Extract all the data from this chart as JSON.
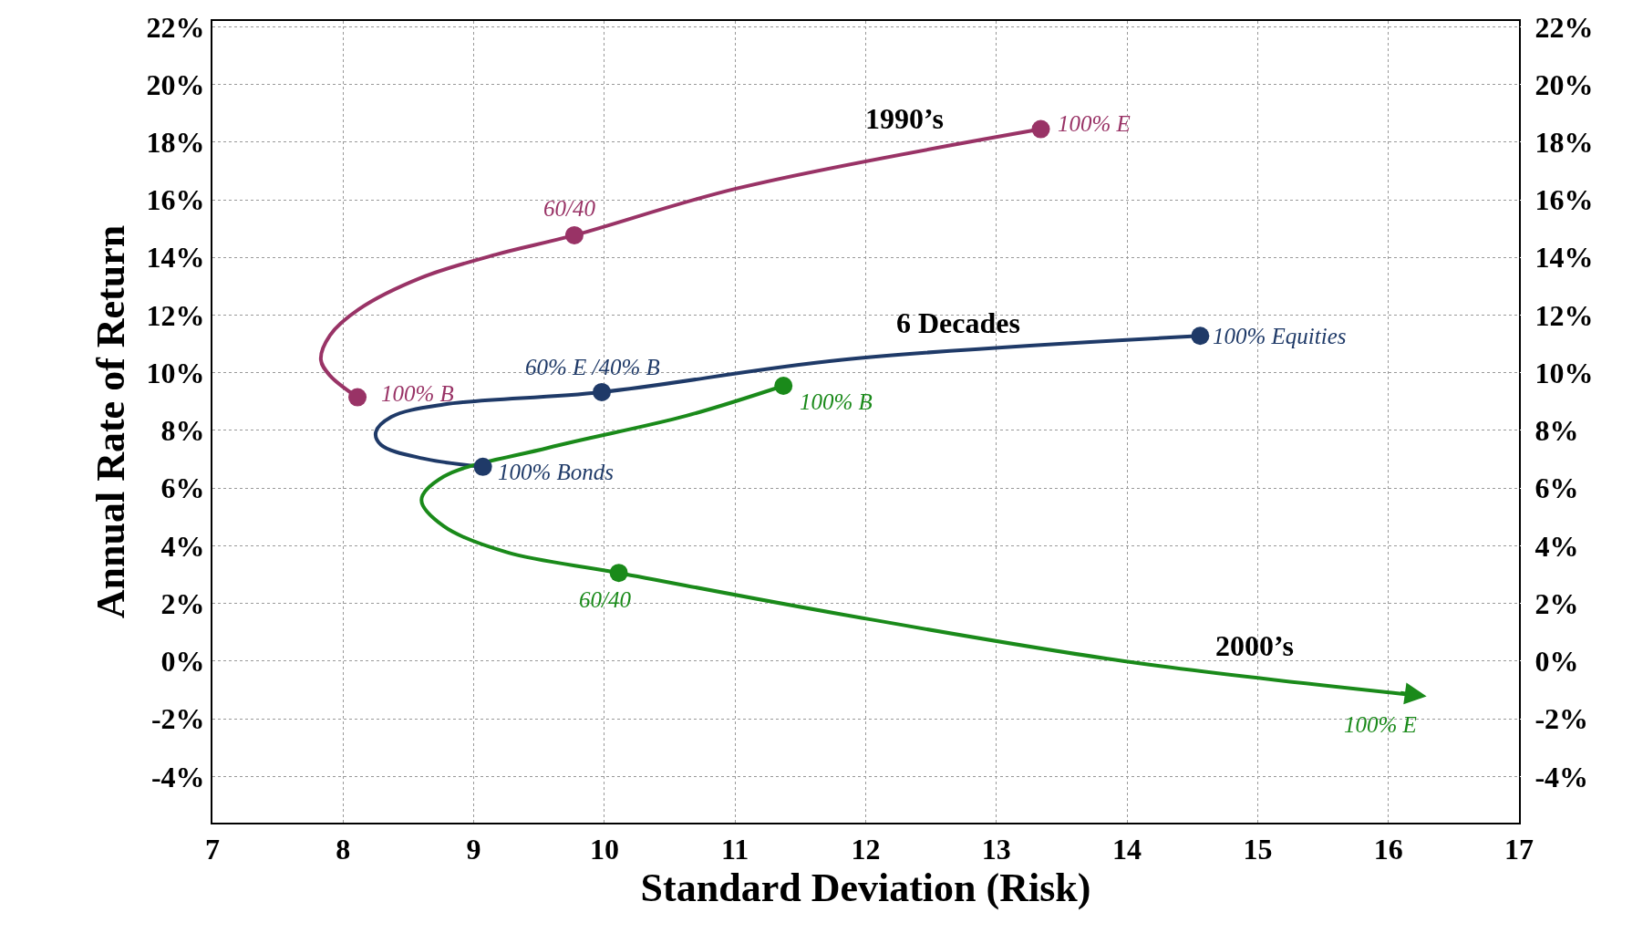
{
  "chart_data": {
    "type": "line",
    "xlabel": "Standard Deviation (Risk)",
    "ylabel": "Annual Rate of Return",
    "xlim": [
      7,
      17
    ],
    "xticks": [
      7,
      8,
      9,
      10,
      11,
      12,
      13,
      14,
      15,
      16,
      17
    ],
    "ylim": [
      -5.6,
      22.2
    ],
    "yticks": [
      {
        "value": -4,
        "label": "-4%"
      },
      {
        "value": -2,
        "label": "-2%"
      },
      {
        "value": 0,
        "label": "0%"
      },
      {
        "value": 2,
        "label": "2%"
      },
      {
        "value": 4,
        "label": "4%"
      },
      {
        "value": 6,
        "label": "6%"
      },
      {
        "value": 8,
        "label": "8%"
      },
      {
        "value": 10,
        "label": "10%"
      },
      {
        "value": 12,
        "label": "12%"
      },
      {
        "value": 14,
        "label": "14%"
      },
      {
        "value": 16,
        "label": "16%"
      },
      {
        "value": 18,
        "label": "18%"
      },
      {
        "value": 20,
        "label": "20%"
      },
      {
        "value": 22,
        "label": "22%"
      }
    ],
    "y2lim": [
      -5.6,
      22.2
    ],
    "y2ticks": [
      {
        "value": -4,
        "label": "-4%"
      },
      {
        "value": -2,
        "label": "-2%"
      },
      {
        "value": 0,
        "label": "0%"
      },
      {
        "value": 2,
        "label": "2%"
      },
      {
        "value": 4,
        "label": "4%"
      },
      {
        "value": 6,
        "label": "6%"
      },
      {
        "value": 8,
        "label": "8%"
      },
      {
        "value": 10,
        "label": "10%"
      },
      {
        "value": 12,
        "label": "12%"
      },
      {
        "value": 14,
        "label": "14%"
      },
      {
        "value": 16,
        "label": "16%"
      },
      {
        "value": 18,
        "label": "18%"
      },
      {
        "value": 20,
        "label": "20%"
      },
      {
        "value": 22,
        "label": "22%"
      }
    ],
    "grid": true,
    "line_style": "solid",
    "series": [
      {
        "name": "1990’s",
        "color": "#993366",
        "marker": "none",
        "x": [
          8.11,
          7.9,
          7.83,
          7.9,
          8.12,
          8.6,
          9.17,
          9.77,
          11.02,
          13.34
        ],
        "values": [
          9.15,
          9.9,
          10.45,
          11.3,
          12.2,
          13.3,
          14.1,
          14.77,
          16.4,
          18.45
        ]
      },
      {
        "name": "6 Decades",
        "color": "#1f3a68",
        "marker": "none",
        "x": [
          9.07,
          8.61,
          8.29,
          8.25,
          8.37,
          8.77,
          9.98,
          11.82,
          14.56
        ],
        "values": [
          6.74,
          7.03,
          7.5,
          7.93,
          8.47,
          8.9,
          9.33,
          10.45,
          11.28
        ]
      },
      {
        "name": "2000’s",
        "color": "#1a8a1a",
        "marker": "none",
        "x": [
          11.37,
          10.62,
          9.57,
          8.77,
          8.6,
          8.77,
          9.25,
          10.11,
          11.82,
          13.98,
          16.23
        ],
        "values": [
          9.55,
          8.5,
          7.4,
          6.4,
          5.59,
          4.68,
          3.78,
          3.06,
          1.62,
          0,
          -1.19
        ]
      },
      {
        "type": "scatter",
        "color": "#993366",
        "marker": "circle",
        "x": [
          8.11,
          9.77,
          13.34
        ],
        "values": [
          9.15,
          14.77,
          18.45
        ]
      },
      {
        "type": "scatter",
        "color": "#1f3a68",
        "marker": "circle",
        "x": [
          9.07,
          9.98,
          14.56
        ],
        "values": [
          6.74,
          9.33,
          11.28
        ]
      },
      {
        "type": "scatter",
        "color": "#1a8a1a",
        "marker": "circle",
        "x": [
          11.37,
          10.11
        ],
        "values": [
          9.55,
          3.06
        ]
      }
    ],
    "annotations": [
      {
        "text": "100% B",
        "x": 8.11,
        "y": 9.15
      },
      {
        "text": "60/40",
        "x": 9.77,
        "y": 14.77
      },
      {
        "text": "100% E",
        "x": 13.34,
        "y": 18.45
      },
      {
        "text": "100% Bonds",
        "x": 9.07,
        "y": 6.74
      },
      {
        "text": "60% E /40% B",
        "x": 9.98,
        "y": 9.33
      },
      {
        "text": "100% Equities",
        "x": 14.56,
        "y": 11.28
      },
      {
        "text": "100% B",
        "x": 11.37,
        "y": 9.55
      },
      {
        "text": "60/40",
        "x": 10.11,
        "y": 3.06
      },
      {
        "text": "100% E",
        "x": 16.23,
        "y": -1.19
      }
    ]
  }
}
